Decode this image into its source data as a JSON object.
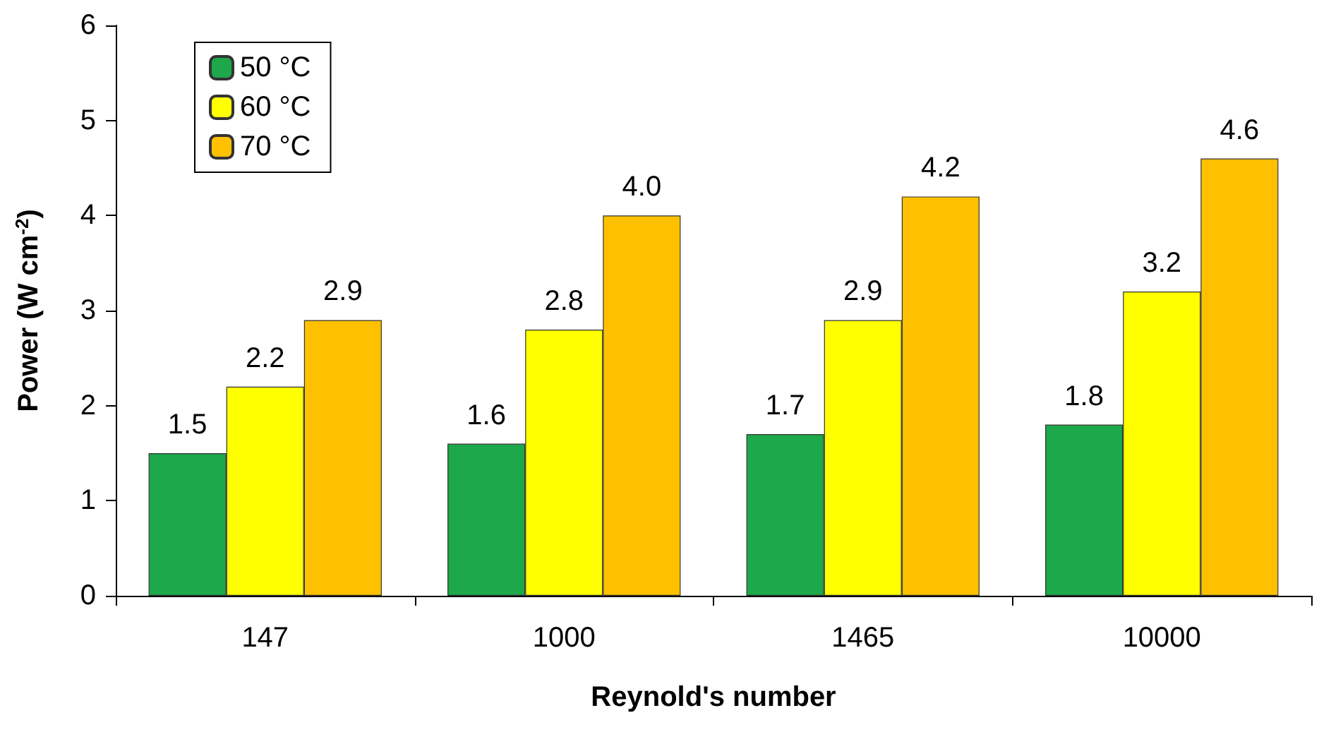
{
  "chart_data": {
    "type": "bar",
    "xlabel": "Reynold's number",
    "ylabel": "Power (W cm$^{-2}$)",
    "categories": [
      "147",
      "1000",
      "1465",
      "10000"
    ],
    "series": [
      {
        "name": "50 °C",
        "color": "#1ca84b",
        "values": [
          1.5,
          1.6,
          1.7,
          1.8
        ],
        "value_labels": [
          "1.5",
          "1.6",
          "1.7",
          "1.8"
        ]
      },
      {
        "name": "60 °C",
        "color": "#ffff00",
        "values": [
          2.2,
          2.8,
          2.9,
          3.2
        ],
        "value_labels": [
          "2.2",
          "2.8",
          "2.9",
          "3.2"
        ]
      },
      {
        "name": "70 °C",
        "color": "#ffc000",
        "values": [
          2.9,
          4.0,
          4.2,
          4.6
        ],
        "value_labels": [
          "2.9",
          "4.0",
          "4.2",
          "4.6"
        ]
      }
    ],
    "ylim": [
      0,
      6
    ],
    "yticks": [
      0,
      1,
      2,
      3,
      4,
      5,
      6
    ],
    "grid": false,
    "legend": "top left"
  }
}
